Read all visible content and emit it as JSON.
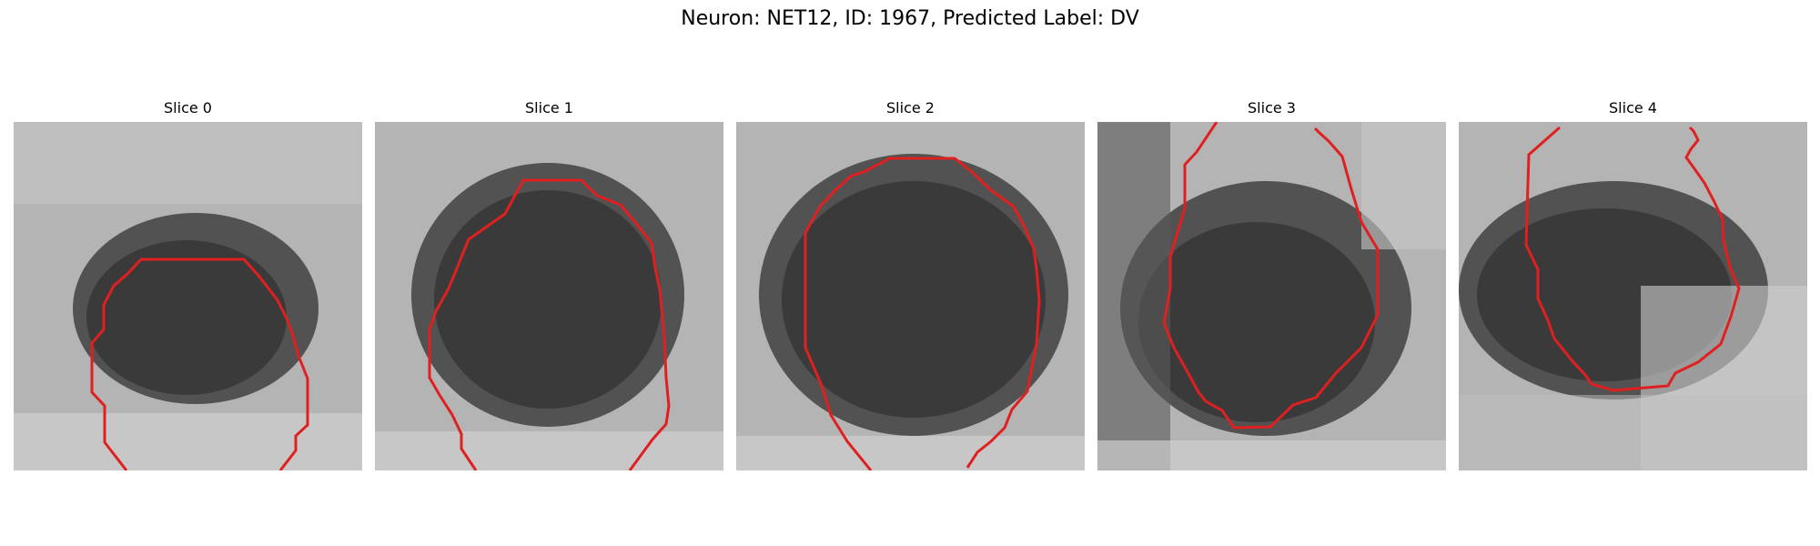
{
  "figure": {
    "title": "Neuron: NET12, ID: 1967, Predicted Label: DV"
  },
  "panels": [
    {
      "title": "Slice 0"
    },
    {
      "title": "Slice 1"
    },
    {
      "title": "Slice 2"
    },
    {
      "title": "Slice 3"
    },
    {
      "title": "Slice 4"
    }
  ],
  "colors": {
    "contour": "#e02020",
    "background": "#ffffff"
  },
  "image": {
    "colormap": "grayscale",
    "content": "microscopy patches, dark rounded neuron cell body on lighter speckled background"
  }
}
